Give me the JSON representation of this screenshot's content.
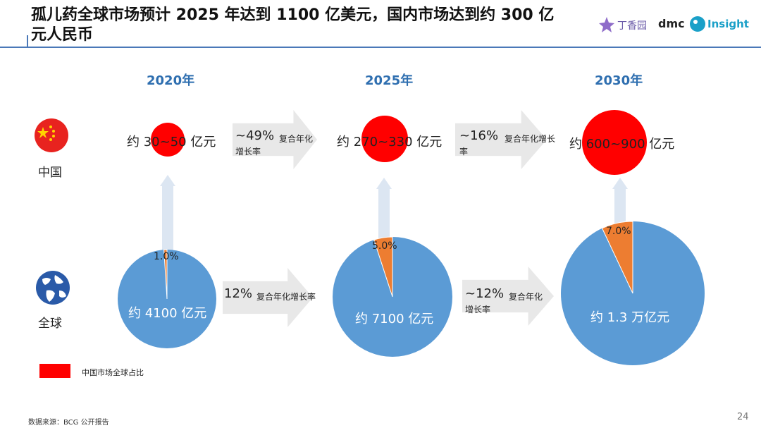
{
  "title": "孤儿药全球市场预计 2025 年达到 1100 亿美元，国内市场达到约 300 亿元人民币",
  "logos": {
    "dxy": "丁香园",
    "dmc": "dmc",
    "insight": "Insight"
  },
  "years": [
    "2020年",
    "2025年",
    "2030年"
  ],
  "rows": {
    "china": "中国",
    "global": "全球"
  },
  "chart_data": {
    "type": "pie",
    "years": [
      "2020年",
      "2025年",
      "2030年"
    ],
    "china_market": [
      "约 30~50 亿元",
      "约 270~330 亿元",
      "约 600~900 亿元"
    ],
    "global_market": [
      "约 4100 亿元",
      "约 7100 亿元",
      "约 1.3 万亿元"
    ],
    "china_share_pct": [
      1.0,
      5.0,
      7.0
    ],
    "china_share_labels": [
      "1.0%",
      "5.0%",
      "7.0%"
    ],
    "china_growth": [
      {
        "rate": "~49%",
        "text": "复合年化",
        "text2": "增长率"
      },
      {
        "rate": "~16%",
        "text": "复合年化增长",
        "text2": "率"
      }
    ],
    "global_growth": [
      {
        "rate": "12%",
        "text": "复合年化增长率",
        "text2": ""
      },
      {
        "rate": "~12%",
        "text": "复合年化",
        "text2": "增长率"
      }
    ],
    "legend": "中国市场全球占比",
    "colors": {
      "china": "#ff0000",
      "global": "#5b9bd5",
      "share": "#ed7d31",
      "arrow": "#e8e8e8",
      "vertical_arrow": "#dce6f2"
    }
  },
  "source": "数据来源：BCG 公开报告",
  "page_number": "24"
}
